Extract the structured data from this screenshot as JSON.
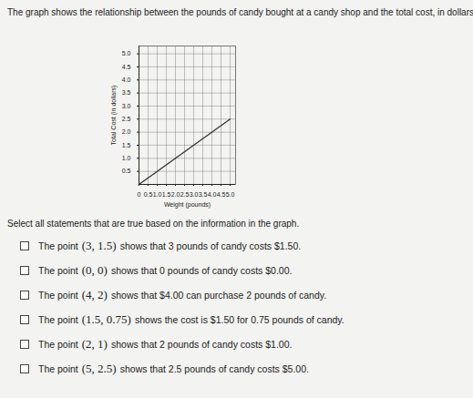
{
  "question": "The graph shows the relationship between the pounds of candy bought at a candy shop and the total cost, in dollars.",
  "chart_data": {
    "type": "line",
    "x_label": "Weight (pounds)",
    "y_label": "Total Cost (in dollars)",
    "x": [
      0,
      5
    ],
    "values": [
      0,
      2.5
    ],
    "color": "#333333",
    "xlim": [
      0,
      5.3
    ],
    "ylim": [
      0,
      5.3
    ],
    "xticks": [
      0,
      0.5,
      {
        "value": 1,
        "label": "1.0"
      },
      1.5,
      {
        "value": 2,
        "label": "2.0"
      },
      2.5,
      {
        "value": 3,
        "label": "3.0"
      },
      3.5,
      {
        "value": 4,
        "label": "4.0"
      },
      4.5,
      {
        "value": 5,
        "label": "5.0"
      }
    ],
    "yticks": [
      0.5,
      {
        "value": 1,
        "label": "1.0"
      },
      1.5,
      {
        "value": 2,
        "label": "2.0"
      },
      2.5,
      {
        "value": 3,
        "label": "3.0"
      },
      3.5,
      {
        "value": 4,
        "label": "4.0"
      },
      4.5,
      {
        "value": 5,
        "label": "5.0"
      }
    ],
    "grid": true
  },
  "instruction": "Select all statements that are true based on the information in the graph.",
  "options": [
    {
      "point": "(3, 1.5)",
      "before": "The point",
      "after": "shows that 3 pounds of candy costs $1.50."
    },
    {
      "point": "(0, 0)",
      "before": "The point",
      "after": "shows that 0 pounds of candy costs $0.00."
    },
    {
      "point": "(4, 2)",
      "before": "The point",
      "after": "shows that $4.00 can purchase 2 pounds of candy."
    },
    {
      "point": "(1.5, 0.75)",
      "before": "The point",
      "after": "shows the cost is $1.50 for 0.75 pounds of candy."
    },
    {
      "point": "(2, 1)",
      "before": "The point",
      "after": "shows that 2 pounds of candy costs $1.00."
    },
    {
      "point": "(5, 2.5)",
      "before": "The point",
      "after": "shows that 2.5 pounds of candy costs $5.00."
    }
  ]
}
